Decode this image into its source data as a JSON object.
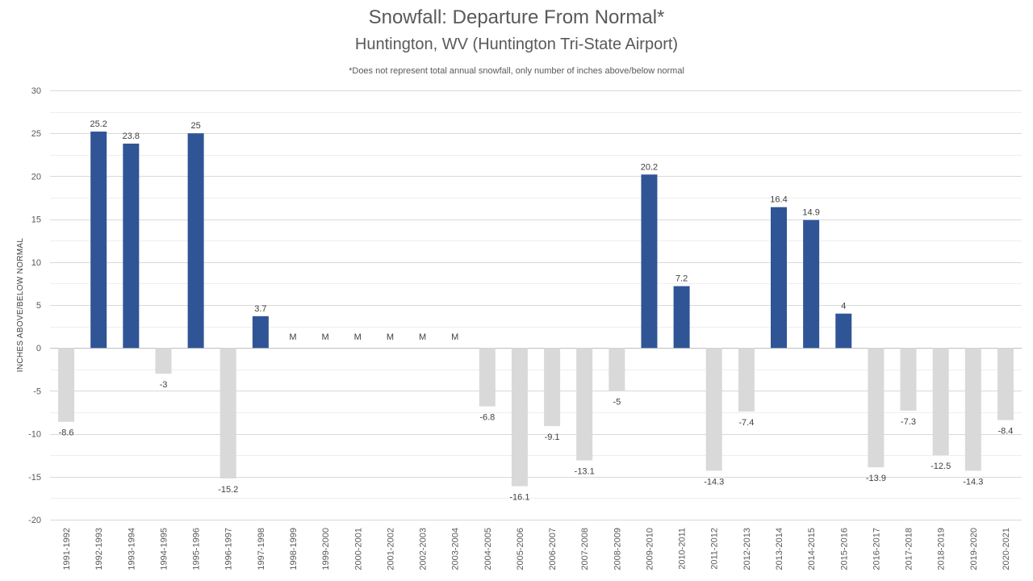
{
  "title": "Snowfall: Departure From Normal*",
  "subtitle": "Huntington, WV (Huntington Tri-State Airport)",
  "note": "*Does not represent  total annual snowfall, only number of inches above/below normal",
  "colors": {
    "positive": "#2f5597",
    "negative": "#d9d9d9",
    "grid": "#d9d9d9",
    "text": "#595959"
  },
  "chart_data": {
    "type": "bar",
    "title": "Snowfall: Departure From Normal*",
    "subtitle": "Huntington, WV (Huntington Tri-State Airport)",
    "xlabel": "",
    "ylabel": "INCHES ABOVE/BELOW NORMAL",
    "ylim": [
      -20,
      30
    ],
    "yticks": [
      30,
      25,
      20,
      15,
      10,
      5,
      0,
      -5,
      -10,
      -15,
      -20
    ],
    "grid": true,
    "missing_label": "M",
    "categories": [
      "1991-1992",
      "1992-1993",
      "1993-1994",
      "1994-1995",
      "1995-1996",
      "1996-1997",
      "1997-1998",
      "1998-1999",
      "1999-2000",
      "2000-2001",
      "2001-2002",
      "2002-2003",
      "2003-2004",
      "2004-2005",
      "2005-2006",
      "2006-2007",
      "2007-2008",
      "2008-2009",
      "2009-2010",
      "2010-2011",
      "2011-2012",
      "2012-2013",
      "2013-2014",
      "2014-2015",
      "2015-2016",
      "2016-2017",
      "2017-2018",
      "2018-2019",
      "2019-2020",
      "2020-2021"
    ],
    "values": [
      -8.6,
      25.2,
      23.8,
      -3,
      25,
      -15.2,
      3.7,
      null,
      null,
      null,
      null,
      null,
      null,
      -6.8,
      -16.1,
      -9.1,
      -13.1,
      -5,
      20.2,
      7.2,
      -14.3,
      -7.4,
      16.4,
      14.9,
      4,
      -13.9,
      -7.3,
      -12.5,
      -14.3,
      -8.4
    ]
  }
}
